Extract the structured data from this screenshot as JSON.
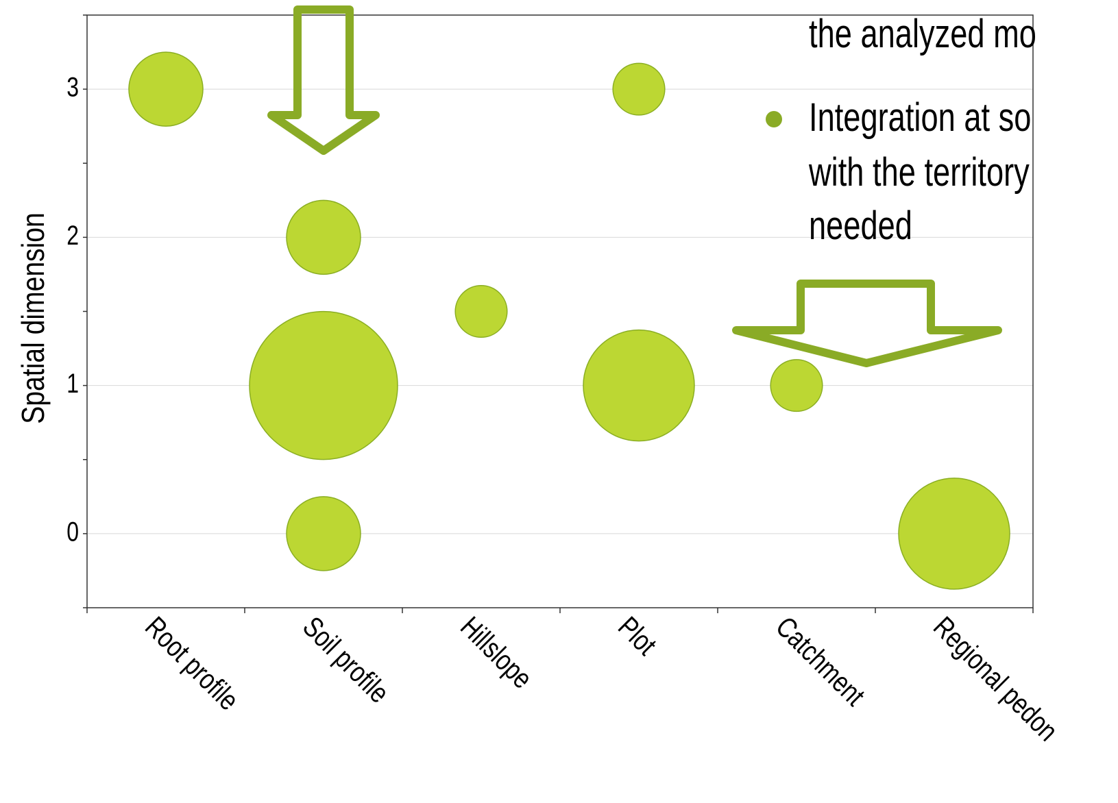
{
  "chart_data": {
    "type": "scatter",
    "subtype": "bubble",
    "categories": [
      "Root profile",
      "Soil profile",
      "Hillslope",
      "Plot",
      "Catchment",
      "Regional pedon"
    ],
    "ylabel": "Spatial dimension",
    "xlabel": "",
    "ylim": [
      -0.5,
      3.5
    ],
    "yticks": [
      0,
      1,
      2,
      3
    ],
    "grid": "horizontal",
    "colors": {
      "bubble_fill": "#bcd733",
      "bubble_stroke": "#8aae22",
      "arrow": "#8aab26",
      "gridline": "#d8d8d8",
      "axis": "#333333"
    },
    "points": [
      {
        "category": "Root profile",
        "y": 3,
        "size": 1.0
      },
      {
        "category": "Soil profile",
        "y": 2,
        "size": 1.0
      },
      {
        "category": "Soil profile",
        "y": 1,
        "size": 2.0
      },
      {
        "category": "Soil profile",
        "y": 0,
        "size": 1.0
      },
      {
        "category": "Hillslope",
        "y": 1.5,
        "size": 0.7
      },
      {
        "category": "Plot",
        "y": 3,
        "size": 0.7
      },
      {
        "category": "Plot",
        "y": 1,
        "size": 1.5
      },
      {
        "category": "Catchment",
        "y": 1,
        "size": 0.7
      },
      {
        "category": "Regional pedon",
        "y": 0,
        "size": 1.5
      }
    ]
  },
  "overlay": {
    "line1": "the analyzed mo",
    "bullet_line1": "Integration at so",
    "bullet_line2": "with the territory",
    "bullet_line3": "needed"
  }
}
